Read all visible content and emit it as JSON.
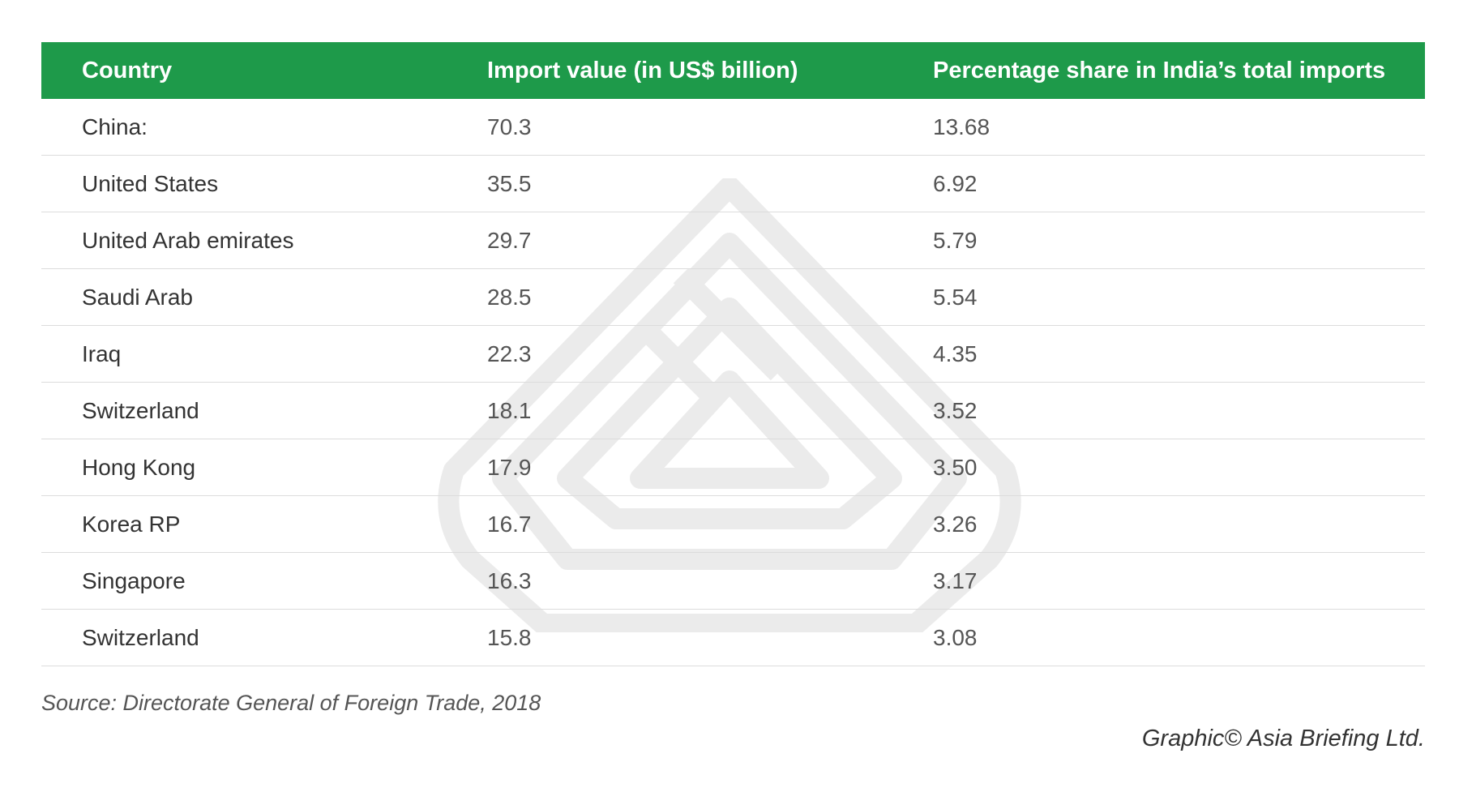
{
  "header": {
    "country": "Country",
    "import_value": "Import value (in US$ billion)",
    "share": "Percentage share in India’s total imports"
  },
  "rows": [
    {
      "country": "China:",
      "value": "70.3",
      "share": "13.68"
    },
    {
      "country": "United States",
      "value": "35.5",
      "share": "6.92"
    },
    {
      "country": "United Arab emirates",
      "value": "29.7",
      "share": "5.79"
    },
    {
      "country": "Saudi Arab",
      "value": "28.5",
      "share": "5.54"
    },
    {
      "country": "Iraq",
      "value": "22.3",
      "share": "4.35"
    },
    {
      "country": "Switzerland",
      "value": "18.1",
      "share": "3.52"
    },
    {
      "country": "Hong Kong",
      "value": "17.9",
      "share": "3.50"
    },
    {
      "country": "Korea RP",
      "value": "16.7",
      "share": "3.26"
    },
    {
      "country": "Singapore",
      "value": "16.3",
      "share": "3.17"
    },
    {
      "country": "Switzerland",
      "value": "15.8",
      "share": "3.08"
    }
  ],
  "source": "Source: Directorate General of Foreign Trade, 2018",
  "credit": "Graphic© Asia Briefing Ltd.",
  "colors": {
    "header_bg": "#1e9a4a",
    "header_text": "#ffffff",
    "row_divider": "#dcdcdc",
    "watermark": "#ebebeb"
  },
  "chart_data": {
    "type": "table",
    "columns": [
      "Country",
      "Import value (in US$ billion)",
      "Percentage share in India’s total imports"
    ],
    "rows": [
      [
        "China:",
        70.3,
        13.68
      ],
      [
        "United States",
        35.5,
        6.92
      ],
      [
        "United Arab emirates",
        29.7,
        5.79
      ],
      [
        "Saudi Arab",
        28.5,
        5.54
      ],
      [
        "Iraq",
        22.3,
        4.35
      ],
      [
        "Switzerland",
        18.1,
        3.52
      ],
      [
        "Hong Kong",
        17.9,
        3.5
      ],
      [
        "Korea RP",
        16.7,
        3.26
      ],
      [
        "Singapore",
        16.3,
        3.17
      ],
      [
        "Switzerland",
        15.8,
        3.08
      ]
    ]
  }
}
